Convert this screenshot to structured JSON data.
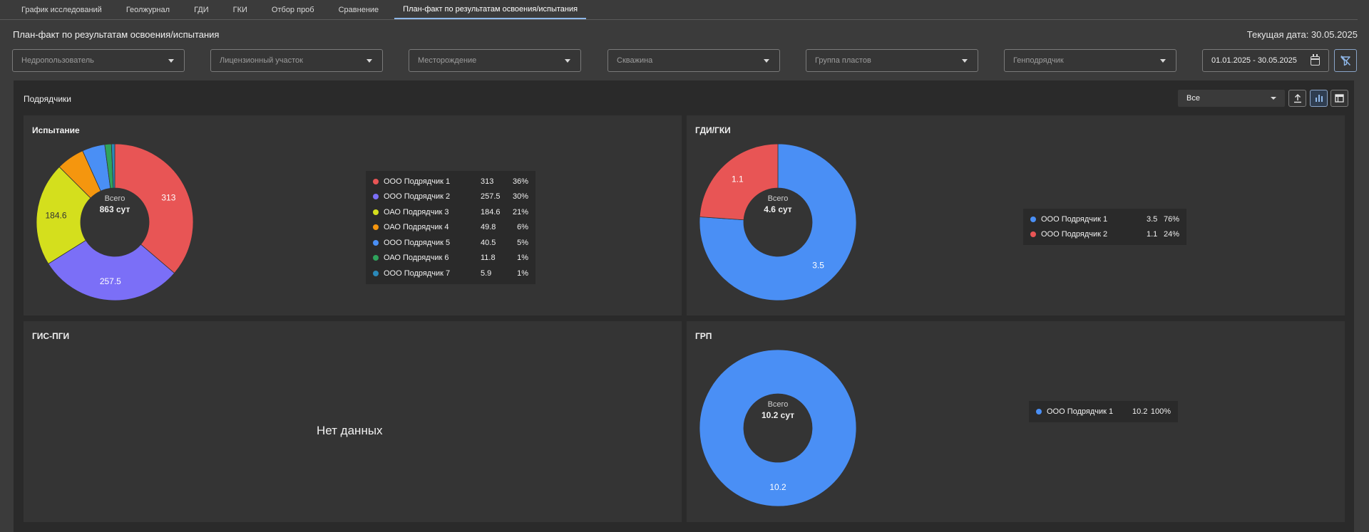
{
  "tabs": [
    {
      "label": "График исследований"
    },
    {
      "label": "Геолжурнал"
    },
    {
      "label": "ГДИ"
    },
    {
      "label": "ГКИ"
    },
    {
      "label": "Отбор проб"
    },
    {
      "label": "Сравнение"
    },
    {
      "label": "План-факт по результатам освоения/испытания"
    }
  ],
  "header": {
    "title": "План-факт по результатам освоения/испытания",
    "current_date": "Текущая дата: 30.05.2025"
  },
  "filters": {
    "subsoil_user": "Недропользователь",
    "license_area": "Лицензионный участок",
    "field": "Месторождение",
    "well": "Скважина",
    "formation_group": "Группа пластов",
    "general_contractor": "Генподрядчик",
    "date_range": "01.01.2025 - 30.05.2025"
  },
  "panel": {
    "title": "Подрядчики",
    "select_value": "Все"
  },
  "icons": {
    "export": "upload-icon",
    "chart_view": "bar-chart-icon",
    "table_view": "table-icon",
    "clear_filter": "filter-off-icon",
    "calendar": "calendar-icon"
  },
  "colors": {
    "red": "#e85555",
    "purple": "#7b6ff7",
    "yellow": "#d4df1d",
    "orange": "#f5960e",
    "blue": "#4a8ff5",
    "green": "#2fa35c",
    "teal": "#2b89b9"
  },
  "chart_data": [
    {
      "type": "pie",
      "title": "Испытание",
      "total_label": "Всего",
      "total_value": "863 сут",
      "series": [
        {
          "name": "ООО Подрядчик 1",
          "value": 313,
          "value_text": "313",
          "pct": "36%",
          "color": "#e85555",
          "label": "313"
        },
        {
          "name": "ООО Подрядчик 2",
          "value": 257.5,
          "value_text": "257.5",
          "pct": "30%",
          "color": "#7b6ff7",
          "label": "257.5"
        },
        {
          "name": "ОАО Подрядчик 3",
          "value": 184.6,
          "value_text": "184.6",
          "pct": "21%",
          "color": "#d4df1d",
          "label": "184.6"
        },
        {
          "name": "ОАО Подрядчик 4",
          "value": 49.8,
          "value_text": "49.8",
          "pct": "6%",
          "color": "#f5960e",
          "label": ""
        },
        {
          "name": "ООО Подрядчик 5",
          "value": 40.5,
          "value_text": "40.5",
          "pct": "5%",
          "color": "#4a8ff5",
          "label": ""
        },
        {
          "name": "ОАО Подрядчик 6",
          "value": 11.8,
          "value_text": "11.8",
          "pct": "1%",
          "color": "#2fa35c",
          "label": ""
        },
        {
          "name": "ООО Подрядчик 7",
          "value": 5.9,
          "value_text": "5.9",
          "pct": "1%",
          "color": "#2b89b9",
          "label": ""
        }
      ]
    },
    {
      "type": "pie",
      "title": "ГДИ/ГКИ",
      "total_label": "Всего",
      "total_value": "4.6 сут",
      "series": [
        {
          "name": "ООО Подрядчик 1",
          "value": 3.5,
          "value_text": "3.5",
          "pct": "76%",
          "color": "#4a8ff5",
          "label": "3.5"
        },
        {
          "name": "ООО Подрядчик 2",
          "value": 1.1,
          "value_text": "1.1",
          "pct": "24%",
          "color": "#e85555",
          "label": "1.1"
        }
      ]
    },
    {
      "type": "pie",
      "title": "ГИС-ПГИ",
      "no_data": "Нет данных",
      "series": []
    },
    {
      "type": "pie",
      "title": "ГРП",
      "total_label": "Всего",
      "total_value": "10.2 сут",
      "series": [
        {
          "name": "ООО Подрядчик 1",
          "value": 10.2,
          "value_text": "10.2",
          "pct": "100%",
          "color": "#4a8ff5",
          "label": "10.2"
        }
      ]
    }
  ]
}
